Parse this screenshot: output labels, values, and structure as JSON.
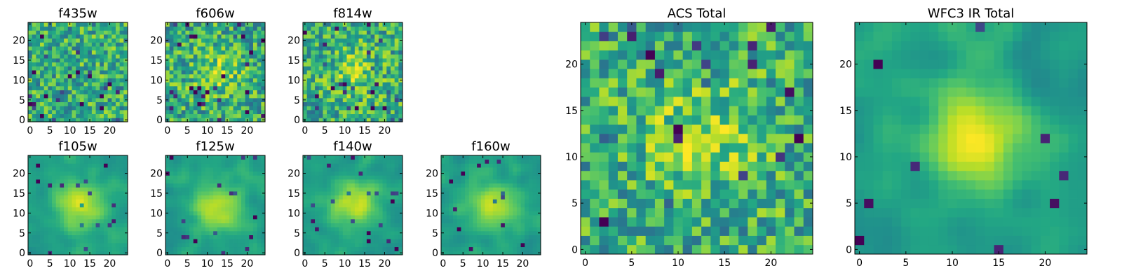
{
  "chart_data": [
    {
      "type": "heatmap",
      "title": "f435w",
      "x_ticks": [
        "0",
        "5",
        "10",
        "15",
        "20"
      ],
      "y_ticks": [
        "0",
        "5",
        "10",
        "15",
        "20"
      ],
      "xlim": [
        -0.5,
        24.5
      ],
      "ylim": [
        -0.5,
        24.5
      ],
      "grid_size": 25,
      "colormap": "viridis",
      "grid": false,
      "pattern": "noise, no central source"
    },
    {
      "type": "heatmap",
      "title": "f606w",
      "x_ticks": [
        "0",
        "5",
        "10",
        "15",
        "20"
      ],
      "y_ticks": [
        "0",
        "5",
        "10",
        "15",
        "20"
      ],
      "xlim": [
        -0.5,
        24.5
      ],
      "ylim": [
        -0.5,
        24.5
      ],
      "grid_size": 25,
      "colormap": "viridis",
      "grid": false,
      "pattern": "noise, faint central source"
    },
    {
      "type": "heatmap",
      "title": "f814w",
      "x_ticks": [
        "0",
        "5",
        "10",
        "15",
        "20"
      ],
      "y_ticks": [
        "0",
        "5",
        "10",
        "15",
        "20"
      ],
      "xlim": [
        -0.5,
        24.5
      ],
      "ylim": [
        -0.5,
        24.5
      ],
      "grid_size": 25,
      "colormap": "viridis",
      "grid": false,
      "pattern": "noise, faint central source"
    },
    {
      "type": "heatmap",
      "title": "f105w",
      "x_ticks": [
        "0",
        "5",
        "10",
        "15",
        "20"
      ],
      "y_ticks": [
        "0",
        "5",
        "10",
        "15",
        "20"
      ],
      "xlim": [
        -0.5,
        24.5
      ],
      "ylim": [
        -0.5,
        24.5
      ],
      "grid_size": 25,
      "colormap": "viridis",
      "grid": false,
      "pattern": "smooth, bright central source"
    },
    {
      "type": "heatmap",
      "title": "f125w",
      "x_ticks": [
        "0",
        "5",
        "10",
        "15",
        "20"
      ],
      "y_ticks": [
        "0",
        "5",
        "10",
        "15",
        "20"
      ],
      "xlim": [
        -0.5,
        24.5
      ],
      "ylim": [
        -0.5,
        24.5
      ],
      "grid_size": 25,
      "colormap": "viridis",
      "grid": false,
      "pattern": "smooth, bright central source"
    },
    {
      "type": "heatmap",
      "title": "f140w",
      "x_ticks": [
        "0",
        "5",
        "10",
        "15",
        "20"
      ],
      "y_ticks": [
        "0",
        "5",
        "10",
        "15",
        "20"
      ],
      "xlim": [
        -0.5,
        24.5
      ],
      "ylim": [
        -0.5,
        24.5
      ],
      "grid_size": 25,
      "colormap": "viridis",
      "grid": false,
      "pattern": "smooth, bright central source"
    },
    {
      "type": "heatmap",
      "title": "f160w",
      "x_ticks": [
        "0",
        "5",
        "10",
        "15",
        "20"
      ],
      "y_ticks": [
        "0",
        "5",
        "10",
        "15",
        "20"
      ],
      "xlim": [
        -0.5,
        24.5
      ],
      "ylim": [
        -0.5,
        24.5
      ],
      "grid_size": 25,
      "colormap": "viridis",
      "grid": false,
      "pattern": "smooth, bright central source"
    },
    {
      "type": "heatmap",
      "title": "ACS Total",
      "x_ticks": [
        "0",
        "5",
        "10",
        "15",
        "20"
      ],
      "y_ticks": [
        "0",
        "5",
        "10",
        "15",
        "20"
      ],
      "xlim": [
        -0.5,
        24.5
      ],
      "ylim": [
        -0.5,
        24.5
      ],
      "grid_size": 25,
      "colormap": "viridis",
      "grid": false,
      "pattern": "noise, moderate central source"
    },
    {
      "type": "heatmap",
      "title": "WFC3 IR Total",
      "x_ticks": [
        "0",
        "5",
        "10",
        "15",
        "20"
      ],
      "y_ticks": [
        "0",
        "5",
        "10",
        "15",
        "20"
      ],
      "xlim": [
        -0.5,
        24.5
      ],
      "ylim": [
        -0.5,
        24.5
      ],
      "grid_size": 25,
      "colormap": "viridis",
      "grid": false,
      "pattern": "smooth, strong central source"
    }
  ]
}
